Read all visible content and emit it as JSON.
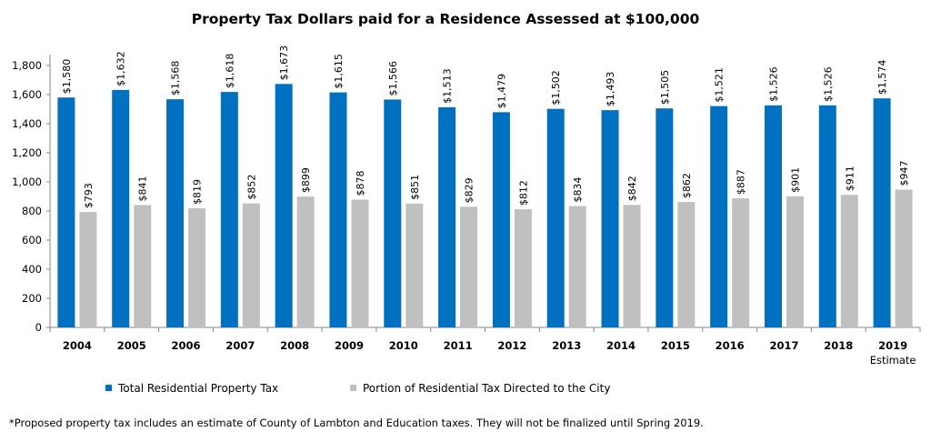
{
  "chart_data": {
    "type": "bar",
    "title": "Property Tax Dollars paid for a Residence Assessed at $100,000",
    "categories": [
      "2004",
      "2005",
      "2006",
      "2007",
      "2008",
      "2009",
      "2010",
      "2011",
      "2012",
      "2013",
      "2014",
      "2015",
      "2016",
      "2017",
      "2018",
      "2019"
    ],
    "category_sublabels": {
      "2019": "Estimate"
    },
    "series": [
      {
        "name": "Total Residential Property Tax",
        "color": "#0070c0",
        "values": [
          1580,
          1632,
          1568,
          1618,
          1673,
          1615,
          1566,
          1513,
          1479,
          1502,
          1493,
          1505,
          1521,
          1526,
          1526,
          1574
        ],
        "labels": [
          "$1,580",
          "$1,632",
          "$1,568",
          "$1,618",
          "$1,673",
          "$1,615",
          "$1,566",
          "$1,513",
          "$1,479",
          "$1,502",
          "$1,493",
          "$1,505",
          "$1,521",
          "$1,526",
          "$1,526",
          "$1,574"
        ]
      },
      {
        "name": "Portion of Residential Tax Directed to the City",
        "color": "#c0c0c0",
        "values": [
          793,
          841,
          819,
          852,
          899,
          878,
          851,
          829,
          812,
          834,
          842,
          862,
          887,
          901,
          911,
          947
        ],
        "labels": [
          "$793",
          "$841",
          "$819",
          "$852",
          "$899",
          "$878",
          "$851",
          "$829",
          "$812",
          "$834",
          "$842",
          "$862",
          "$887",
          "$901",
          "$911",
          "$947"
        ]
      }
    ],
    "ylim": [
      0,
      1800
    ],
    "yticks": [
      0,
      200,
      400,
      600,
      800,
      1000,
      1200,
      1400,
      1600,
      1800
    ],
    "ytick_labels": [
      "0",
      "200",
      "400",
      "600",
      "800",
      "1,000",
      "1,200",
      "1,400",
      "1,600",
      "1,800"
    ],
    "legend_position": "bottom",
    "grid": false
  },
  "footnote": "*Proposed property tax includes an estimate of County of Lambton and Education taxes.  They will not be finalized until Spring 2019."
}
